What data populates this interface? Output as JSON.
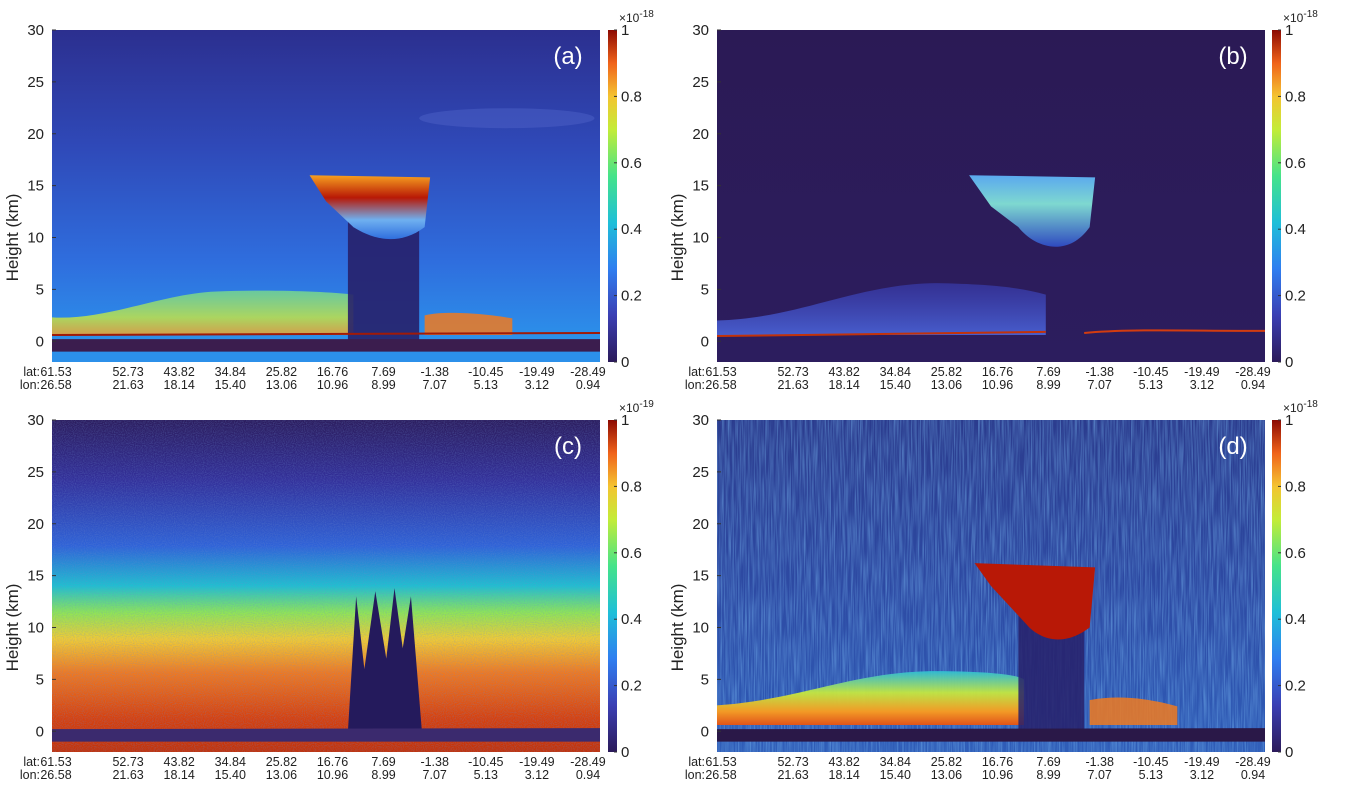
{
  "chart_data": [
    {
      "type": "heatmap",
      "panel_label": "(a)",
      "ylabel": "Height (km)",
      "ylim": [
        0,
        30
      ],
      "yticks": [
        "0",
        "5",
        "10",
        "15",
        "20",
        "25",
        "30"
      ],
      "x_row1_prefix": "lat:",
      "x_row2_prefix": "lon:",
      "lat_ticks": [
        "61.53",
        "52.73",
        "43.82",
        "34.84",
        "25.82",
        "16.76",
        "7.69",
        "-1.38",
        "-10.45",
        "-19.49",
        "-28.49"
      ],
      "lon_ticks": [
        "26.58",
        "21.63",
        "18.14",
        "15.40",
        "13.06",
        "10.96",
        "8.99",
        "7.07",
        "5.13",
        "3.12",
        "0.94"
      ],
      "colorbar": {
        "min": 0,
        "max": 1,
        "exponent_base": "×10",
        "exponent": "-18",
        "ticks": [
          "0",
          "0.2",
          "0.4",
          "0.6",
          "0.8",
          "1"
        ]
      },
      "grid": false,
      "colormap": "jet"
    },
    {
      "type": "heatmap",
      "panel_label": "(b)",
      "ylabel": "Height (km)",
      "ylim": [
        0,
        30
      ],
      "yticks": [
        "0",
        "5",
        "10",
        "15",
        "20",
        "25",
        "30"
      ],
      "x_row1_prefix": "lat:",
      "x_row2_prefix": "lon:",
      "lat_ticks": [
        "61.53",
        "52.73",
        "43.82",
        "34.84",
        "25.82",
        "16.76",
        "7.69",
        "-1.38",
        "-10.45",
        "-19.49",
        "-28.49"
      ],
      "lon_ticks": [
        "26.58",
        "21.63",
        "18.14",
        "15.40",
        "13.06",
        "10.96",
        "8.99",
        "7.07",
        "5.13",
        "3.12",
        "0.94"
      ],
      "colorbar": {
        "min": 0,
        "max": 1,
        "exponent_base": "×10",
        "exponent": "-18",
        "ticks": [
          "0",
          "0.2",
          "0.4",
          "0.6",
          "0.8",
          "1"
        ]
      },
      "grid": false,
      "colormap": "jet"
    },
    {
      "type": "heatmap",
      "panel_label": "(c)",
      "ylabel": "Height (km)",
      "ylim": [
        0,
        30
      ],
      "yticks": [
        "0",
        "5",
        "10",
        "15",
        "20",
        "25",
        "30"
      ],
      "x_row1_prefix": "lat:",
      "x_row2_prefix": "lon:",
      "lat_ticks": [
        "61.53",
        "52.73",
        "43.82",
        "34.84",
        "25.82",
        "16.76",
        "7.69",
        "-1.38",
        "-10.45",
        "-19.49",
        "-28.49"
      ],
      "lon_ticks": [
        "26.58",
        "21.63",
        "18.14",
        "15.40",
        "13.06",
        "10.96",
        "8.99",
        "7.07",
        "5.13",
        "3.12",
        "0.94"
      ],
      "colorbar": {
        "min": 0,
        "max": 1,
        "exponent_base": "×10",
        "exponent": "-19",
        "ticks": [
          "0",
          "0.2",
          "0.4",
          "0.6",
          "0.8",
          "1"
        ]
      },
      "grid": false,
      "colormap": "jet"
    },
    {
      "type": "heatmap",
      "panel_label": "(d)",
      "ylabel": "Height (km)",
      "ylim": [
        0,
        30
      ],
      "yticks": [
        "0",
        "5",
        "10",
        "15",
        "20",
        "25",
        "30"
      ],
      "x_row1_prefix": "lat:",
      "x_row2_prefix": "lon:",
      "lat_ticks": [
        "61.53",
        "52.73",
        "43.82",
        "34.84",
        "25.82",
        "16.76",
        "7.69",
        "-1.38",
        "-10.45",
        "-19.49",
        "-28.49"
      ],
      "lon_ticks": [
        "26.58",
        "21.63",
        "18.14",
        "15.40",
        "13.06",
        "10.96",
        "8.99",
        "7.07",
        "5.13",
        "3.12",
        "0.94"
      ],
      "colorbar": {
        "min": 0,
        "max": 1,
        "exponent_base": "×10",
        "exponent": "-18",
        "ticks": [
          "0",
          "0.2",
          "0.4",
          "0.6",
          "0.8",
          "1"
        ]
      },
      "grid": false,
      "colormap": "jet"
    }
  ]
}
